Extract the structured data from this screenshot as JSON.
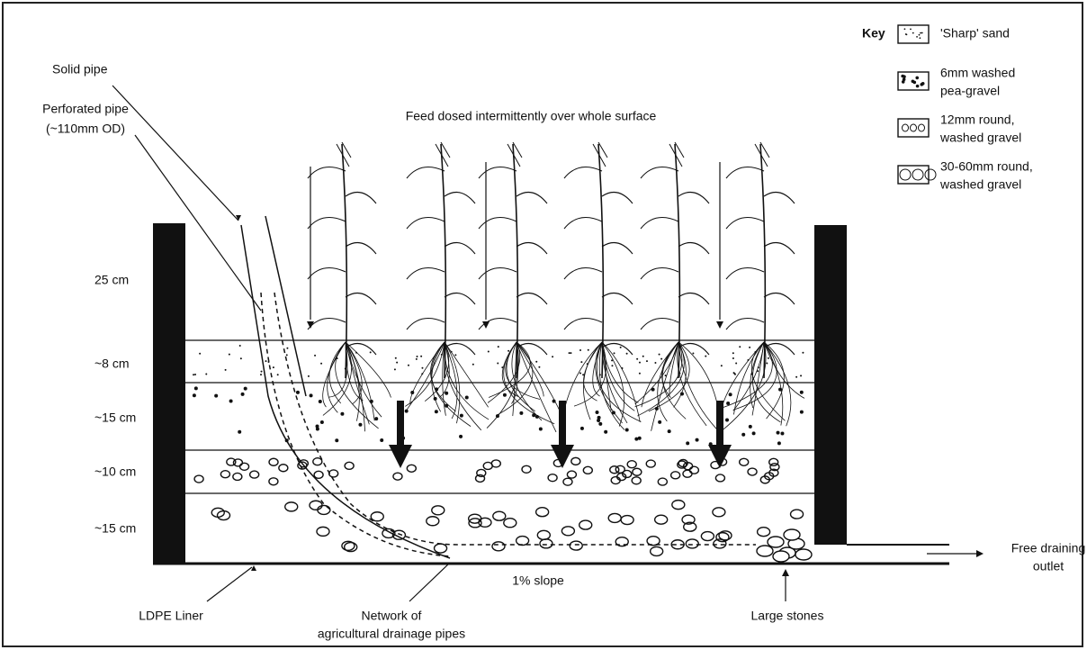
{
  "key": {
    "title": "Key",
    "items": [
      {
        "lines": [
          "'Sharp' sand"
        ]
      },
      {
        "lines": [
          "6mm washed",
          "pea-gravel"
        ]
      },
      {
        "lines": [
          "12mm round,",
          "washed gravel"
        ]
      },
      {
        "lines": [
          "30-60mm round,",
          "washed gravel"
        ]
      }
    ]
  },
  "feed": "Feed dosed intermittently over whole surface",
  "callouts": {
    "solid_pipe": [
      "Solid pipe"
    ],
    "perforated_pipe": [
      "Perforated pipe",
      "(~110mm OD)"
    ],
    "liner": [
      "LDPE Liner"
    ],
    "network": [
      "Network of",
      "agricultural drainage pipes"
    ],
    "stones": [
      "Large stones"
    ],
    "outlet": [
      "Free draining",
      "outlet"
    ],
    "slope": [
      "1% slope"
    ]
  },
  "depths": [
    "25 cm",
    "~8 cm",
    "~15  cm",
    "~10 cm",
    "~15 cm"
  ]
}
